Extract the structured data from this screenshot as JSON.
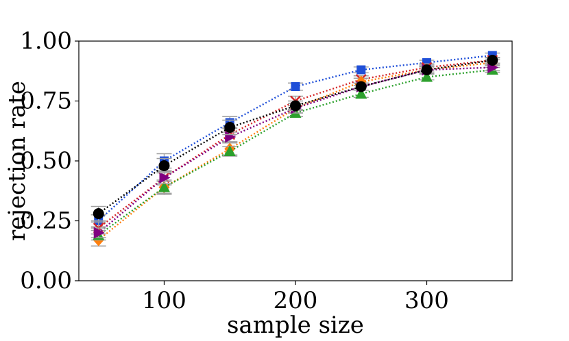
{
  "chart_data": {
    "type": "line",
    "title": "",
    "xlabel": "sample size",
    "ylabel": "rejection rate",
    "xlim": [
      35,
      365
    ],
    "ylim": [
      0.0,
      1.0
    ],
    "x_ticks": [
      100,
      200,
      300
    ],
    "x_tick_labels": [
      "100",
      "200",
      "300"
    ],
    "y_ticks": [
      0.0,
      0.25,
      0.5,
      0.75,
      1.0
    ],
    "y_tick_labels": [
      "0.00",
      "0.25",
      "0.50",
      "0.75",
      "1.00"
    ],
    "grid": false,
    "x": [
      50,
      100,
      150,
      200,
      250,
      300,
      350
    ],
    "series": [
      {
        "name": "blue-square",
        "color": "#1f4fd8",
        "marker": "square",
        "values": [
          0.25,
          0.5,
          0.66,
          0.81,
          0.88,
          0.91,
          0.94
        ],
        "err": [
          0.025,
          0.03,
          0.025,
          0.015,
          0.012,
          0.01,
          0.01
        ]
      },
      {
        "name": "red-x",
        "color": "#d62728",
        "marker": "x",
        "values": [
          0.22,
          0.43,
          0.61,
          0.75,
          0.84,
          0.89,
          0.92
        ],
        "err": [
          0.025,
          0.03,
          0.03,
          0.02,
          0.015,
          0.015,
          0.012
        ]
      },
      {
        "name": "orange-diamond",
        "color": "#ff7f0e",
        "marker": "diamond",
        "values": [
          0.17,
          0.39,
          0.55,
          0.72,
          0.83,
          0.88,
          0.91
        ],
        "err": [
          0.025,
          0.03,
          0.025,
          0.02,
          0.015,
          0.015,
          0.012
        ]
      },
      {
        "name": "green-triangle",
        "color": "#2ca02c",
        "marker": "triangle-up",
        "values": [
          0.19,
          0.39,
          0.54,
          0.7,
          0.78,
          0.85,
          0.88
        ],
        "err": [
          0.02,
          0.025,
          0.02,
          0.015,
          0.015,
          0.012,
          0.01
        ]
      },
      {
        "name": "purple-triangle-right",
        "color": "#800080",
        "marker": "triangle-right",
        "values": [
          0.2,
          0.43,
          0.6,
          0.72,
          0.81,
          0.88,
          0.89
        ],
        "err": [
          0.02,
          0.025,
          0.02,
          0.02,
          0.015,
          0.012,
          0.012
        ]
      },
      {
        "name": "black-circle",
        "color": "#000000",
        "marker": "circle",
        "values": [
          0.28,
          0.48,
          0.64,
          0.73,
          0.81,
          0.88,
          0.92
        ],
        "err": [
          0.03,
          0.03,
          0.03,
          0.02,
          0.015,
          0.012,
          0.012
        ]
      }
    ]
  }
}
